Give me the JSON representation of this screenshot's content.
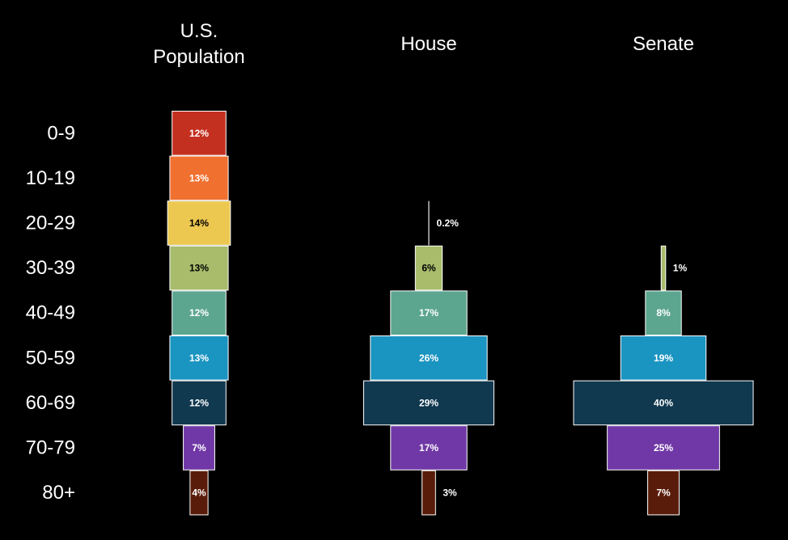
{
  "chart_data": {
    "type": "bar",
    "orientation": "horizontal-centered",
    "grid": false,
    "legend": "none",
    "categories": [
      "0-9",
      "10-19",
      "20-29",
      "30-39",
      "40-49",
      "50-59",
      "60-69",
      "70-79",
      "80+"
    ],
    "category_colors": [
      "#c43020",
      "#f07030",
      "#ecc850",
      "#a8bc6c",
      "#5ca690",
      "#1a94c0",
      "#10384f",
      "#7038a6",
      "#5a1c0a"
    ],
    "category_label_colors": [
      "#ffffff",
      "#ffffff",
      "#000000",
      "#000000",
      "#ffffff",
      "#ffffff",
      "#ffffff",
      "#ffffff",
      "#ffffff"
    ],
    "series": [
      {
        "name": "U.S. Population",
        "title_lines": [
          "U.S.",
          "Population"
        ],
        "values": [
          12,
          13,
          14,
          13,
          12,
          13,
          12,
          7,
          4
        ],
        "labels": [
          "12%",
          "13%",
          "14%",
          "13%",
          "12%",
          "13%",
          "12%",
          "7%",
          "4%"
        ]
      },
      {
        "name": "House",
        "title_lines": [
          "House"
        ],
        "values": [
          0,
          0,
          0.2,
          6,
          17,
          26,
          29,
          17,
          3
        ],
        "labels": [
          "",
          "",
          "0.2%",
          "6%",
          "17%",
          "26%",
          "29%",
          "17%",
          "3%"
        ]
      },
      {
        "name": "Senate",
        "title_lines": [
          "Senate"
        ],
        "values": [
          0,
          0,
          0,
          1,
          8,
          19,
          40,
          25,
          7
        ],
        "labels": [
          "",
          "",
          "",
          "1%",
          "8%",
          "19%",
          "40%",
          "25%",
          "7%"
        ]
      }
    ]
  }
}
